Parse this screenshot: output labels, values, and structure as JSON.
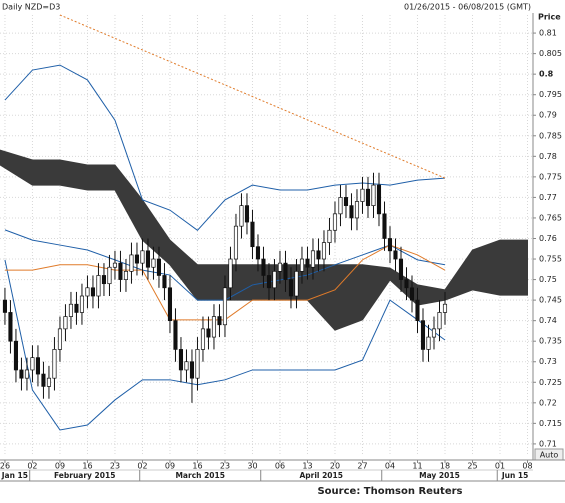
{
  "chart_data": {
    "type": "candlestick",
    "title": "Daily NZD=D3",
    "date_range": "01/26/2015 - 06/08/2015 (GMT)",
    "y_label": "Price",
    "scale_label": "Auto",
    "source": "Source: Thomson Reuters",
    "up_color": "#ffffff",
    "down_color": "#111111",
    "open": [
      0.745,
      0.742,
      0.735,
      0.728,
      0.726,
      0.728,
      0.731,
      0.727,
      0.724,
      0.726,
      0.733,
      0.738,
      0.741,
      0.744,
      0.742,
      0.746,
      0.748,
      0.746,
      0.751,
      0.749,
      0.753,
      0.754,
      0.75,
      0.752,
      0.756,
      0.754,
      0.757,
      0.753,
      0.755,
      0.751,
      0.748,
      0.74,
      0.733,
      0.728,
      0.73,
      0.726,
      0.733,
      0.738,
      0.736,
      0.741,
      0.739,
      0.748,
      0.755,
      0.763,
      0.768,
      0.764,
      0.758,
      0.755,
      0.751,
      0.748,
      0.752,
      0.754,
      0.75,
      0.746,
      0.752,
      0.755,
      0.753,
      0.757,
      0.755,
      0.759,
      0.762,
      0.766,
      0.77,
      0.768,
      0.765,
      0.769,
      0.772,
      0.768,
      0.773,
      0.766,
      0.76,
      0.757,
      0.755,
      0.75,
      0.748,
      0.745,
      0.74,
      0.733,
      0.736,
      0.738,
      0.742
    ],
    "high": [
      0.748,
      0.745,
      0.738,
      0.731,
      0.731,
      0.734,
      0.734,
      0.73,
      0.729,
      0.736,
      0.741,
      0.744,
      0.747,
      0.747,
      0.749,
      0.751,
      0.751,
      0.754,
      0.754,
      0.756,
      0.757,
      0.757,
      0.755,
      0.759,
      0.759,
      0.76,
      0.76,
      0.758,
      0.758,
      0.754,
      0.751,
      0.743,
      0.736,
      0.733,
      0.733,
      0.736,
      0.741,
      0.741,
      0.744,
      0.744,
      0.751,
      0.758,
      0.766,
      0.771,
      0.771,
      0.767,
      0.761,
      0.758,
      0.754,
      0.755,
      0.757,
      0.757,
      0.753,
      0.755,
      0.758,
      0.758,
      0.76,
      0.76,
      0.762,
      0.765,
      0.769,
      0.773,
      0.773,
      0.771,
      0.772,
      0.775,
      0.775,
      0.776,
      0.776,
      0.769,
      0.763,
      0.76,
      0.758,
      0.753,
      0.751,
      0.748,
      0.743,
      0.739,
      0.741,
      0.745,
      0.747
    ],
    "low": [
      0.739,
      0.732,
      0.725,
      0.723,
      0.723,
      0.725,
      0.724,
      0.721,
      0.721,
      0.723,
      0.73,
      0.735,
      0.738,
      0.739,
      0.739,
      0.743,
      0.743,
      0.743,
      0.746,
      0.746,
      0.75,
      0.747,
      0.747,
      0.749,
      0.751,
      0.751,
      0.75,
      0.75,
      0.748,
      0.745,
      0.737,
      0.73,
      0.725,
      0.725,
      0.72,
      0.723,
      0.73,
      0.733,
      0.733,
      0.736,
      0.736,
      0.745,
      0.752,
      0.76,
      0.761,
      0.755,
      0.752,
      0.748,
      0.745,
      0.745,
      0.749,
      0.747,
      0.743,
      0.743,
      0.749,
      0.75,
      0.75,
      0.752,
      0.752,
      0.756,
      0.759,
      0.763,
      0.765,
      0.762,
      0.762,
      0.766,
      0.765,
      0.765,
      0.763,
      0.757,
      0.754,
      0.752,
      0.747,
      0.745,
      0.742,
      0.737,
      0.73,
      0.73,
      0.733,
      0.735,
      0.739
    ],
    "close": [
      0.742,
      0.735,
      0.728,
      0.726,
      0.728,
      0.731,
      0.727,
      0.724,
      0.726,
      0.733,
      0.738,
      0.741,
      0.744,
      0.742,
      0.746,
      0.748,
      0.746,
      0.751,
      0.749,
      0.753,
      0.754,
      0.75,
      0.752,
      0.756,
      0.754,
      0.757,
      0.753,
      0.755,
      0.751,
      0.748,
      0.74,
      0.733,
      0.728,
      0.73,
      0.726,
      0.733,
      0.738,
      0.736,
      0.741,
      0.739,
      0.748,
      0.755,
      0.763,
      0.768,
      0.764,
      0.758,
      0.755,
      0.751,
      0.748,
      0.752,
      0.754,
      0.75,
      0.746,
      0.752,
      0.755,
      0.753,
      0.757,
      0.755,
      0.759,
      0.762,
      0.766,
      0.77,
      0.768,
      0.765,
      0.769,
      0.772,
      0.768,
      0.773,
      0.766,
      0.76,
      0.757,
      0.755,
      0.75,
      0.748,
      0.745,
      0.74,
      0.733,
      0.736,
      0.738,
      0.742,
      0.744
    ],
    "xlim": [
      -0.9,
      96.0
    ],
    "xticks": [
      {
        "value": 0,
        "label": "26"
      },
      {
        "value": 5,
        "label": "02"
      },
      {
        "value": 10,
        "label": "09"
      },
      {
        "value": 15,
        "label": "16"
      },
      {
        "value": 20,
        "label": "23"
      },
      {
        "value": 25,
        "label": "02"
      },
      {
        "value": 30,
        "label": "09"
      },
      {
        "value": 35,
        "label": "16"
      },
      {
        "value": 40,
        "label": "23"
      },
      {
        "value": 45,
        "label": "30"
      },
      {
        "value": 50,
        "label": "06"
      },
      {
        "value": 55,
        "label": "13"
      },
      {
        "value": 60,
        "label": "20"
      },
      {
        "value": 65,
        "label": "27"
      },
      {
        "value": 70,
        "label": "04"
      },
      {
        "value": 75,
        "label": "11"
      },
      {
        "value": 80,
        "label": "18"
      },
      {
        "value": 85,
        "label": "25"
      },
      {
        "value": 90,
        "label": "01"
      },
      {
        "value": 95,
        "label": "08"
      }
    ],
    "months": [
      "Jan 15",
      "February 2015",
      "March 2015",
      "April 2015",
      "May 2015",
      "Jun 15"
    ],
    "ylim": [
      0.7073,
      0.8144
    ],
    "yticks": [
      0.71,
      0.715,
      0.72,
      0.725,
      0.73,
      0.735,
      0.74,
      0.745,
      0.75,
      0.755,
      0.76,
      0.765,
      0.77,
      0.775,
      0.78,
      0.785,
      0.79,
      0.795,
      0.8,
      0.805,
      0.81
    ],
    "grid": true,
    "overlays": [
      {
        "color": "#1f5fa8",
        "x": [
          0,
          5,
          10,
          15,
          20,
          25,
          30,
          35,
          40,
          45,
          50,
          55,
          60,
          65,
          70,
          75,
          80
        ],
        "values": [
          0.7937,
          0.801,
          0.8022,
          0.7986,
          0.7888,
          0.7694,
          0.7669,
          0.762,
          0.7694,
          0.773,
          0.7718,
          0.7718,
          0.773,
          0.7735,
          0.773,
          0.7742,
          0.7747
        ]
      },
      {
        "color": "#1f5fa8",
        "x": [
          0,
          5,
          10,
          15,
          20,
          25,
          30,
          35,
          40,
          45,
          50,
          55,
          60,
          65,
          70,
          75,
          80
        ],
        "values": [
          0.7621,
          0.7596,
          0.7584,
          0.7572,
          0.7548,
          0.7523,
          0.7511,
          0.745,
          0.745,
          0.7487,
          0.7499,
          0.7511,
          0.7536,
          0.756,
          0.7584,
          0.7548,
          0.7536
        ]
      },
      {
        "color": "#1f5fa8",
        "x": [
          0,
          5,
          10,
          15,
          20,
          25,
          30,
          35,
          40,
          45,
          50,
          55,
          60,
          65,
          70,
          75,
          80
        ],
        "values": [
          0.7548,
          0.7231,
          0.7134,
          0.7146,
          0.7207,
          0.7256,
          0.7256,
          0.7244,
          0.7256,
          0.728,
          0.728,
          0.728,
          0.728,
          0.7304,
          0.745,
          0.7402,
          0.7353
        ]
      },
      {
        "color": "#e07b2a",
        "x": [
          0,
          5,
          10,
          15,
          20,
          25,
          30,
          35,
          40,
          45,
          50,
          55,
          60,
          65,
          70,
          75,
          80
        ],
        "values": [
          0.7523,
          0.7523,
          0.7536,
          0.7536,
          0.7523,
          0.7523,
          0.7402,
          0.7402,
          0.7402,
          0.745,
          0.745,
          0.745,
          0.7475,
          0.7548,
          0.7584,
          0.756,
          0.7523
        ]
      }
    ],
    "cloud": {
      "color": "#3a3a3a",
      "x": [
        -0.9,
        5,
        10,
        15,
        20,
        25,
        30,
        35,
        40,
        45,
        50,
        55,
        60,
        65,
        70,
        75,
        80,
        85,
        90,
        95
      ],
      "upper": [
        0.7815,
        0.7791,
        0.7791,
        0.7779,
        0.7779,
        0.7694,
        0.7596,
        0.7536,
        0.7536,
        0.7536,
        0.7536,
        0.7536,
        0.7536,
        0.7536,
        0.7528,
        0.7487,
        0.7475,
        0.7572,
        0.7596,
        0.7596
      ],
      "lower": [
        0.7779,
        0.773,
        0.773,
        0.7718,
        0.7718,
        0.7596,
        0.7536,
        0.745,
        0.745,
        0.745,
        0.745,
        0.745,
        0.7377,
        0.7402,
        0.7499,
        0.7438,
        0.745,
        0.7475,
        0.7462,
        0.7462
      ]
    },
    "trend": {
      "color": "#e07b2a",
      "x": [
        10,
        80
      ],
      "values": [
        0.8144,
        0.7747
      ]
    }
  }
}
